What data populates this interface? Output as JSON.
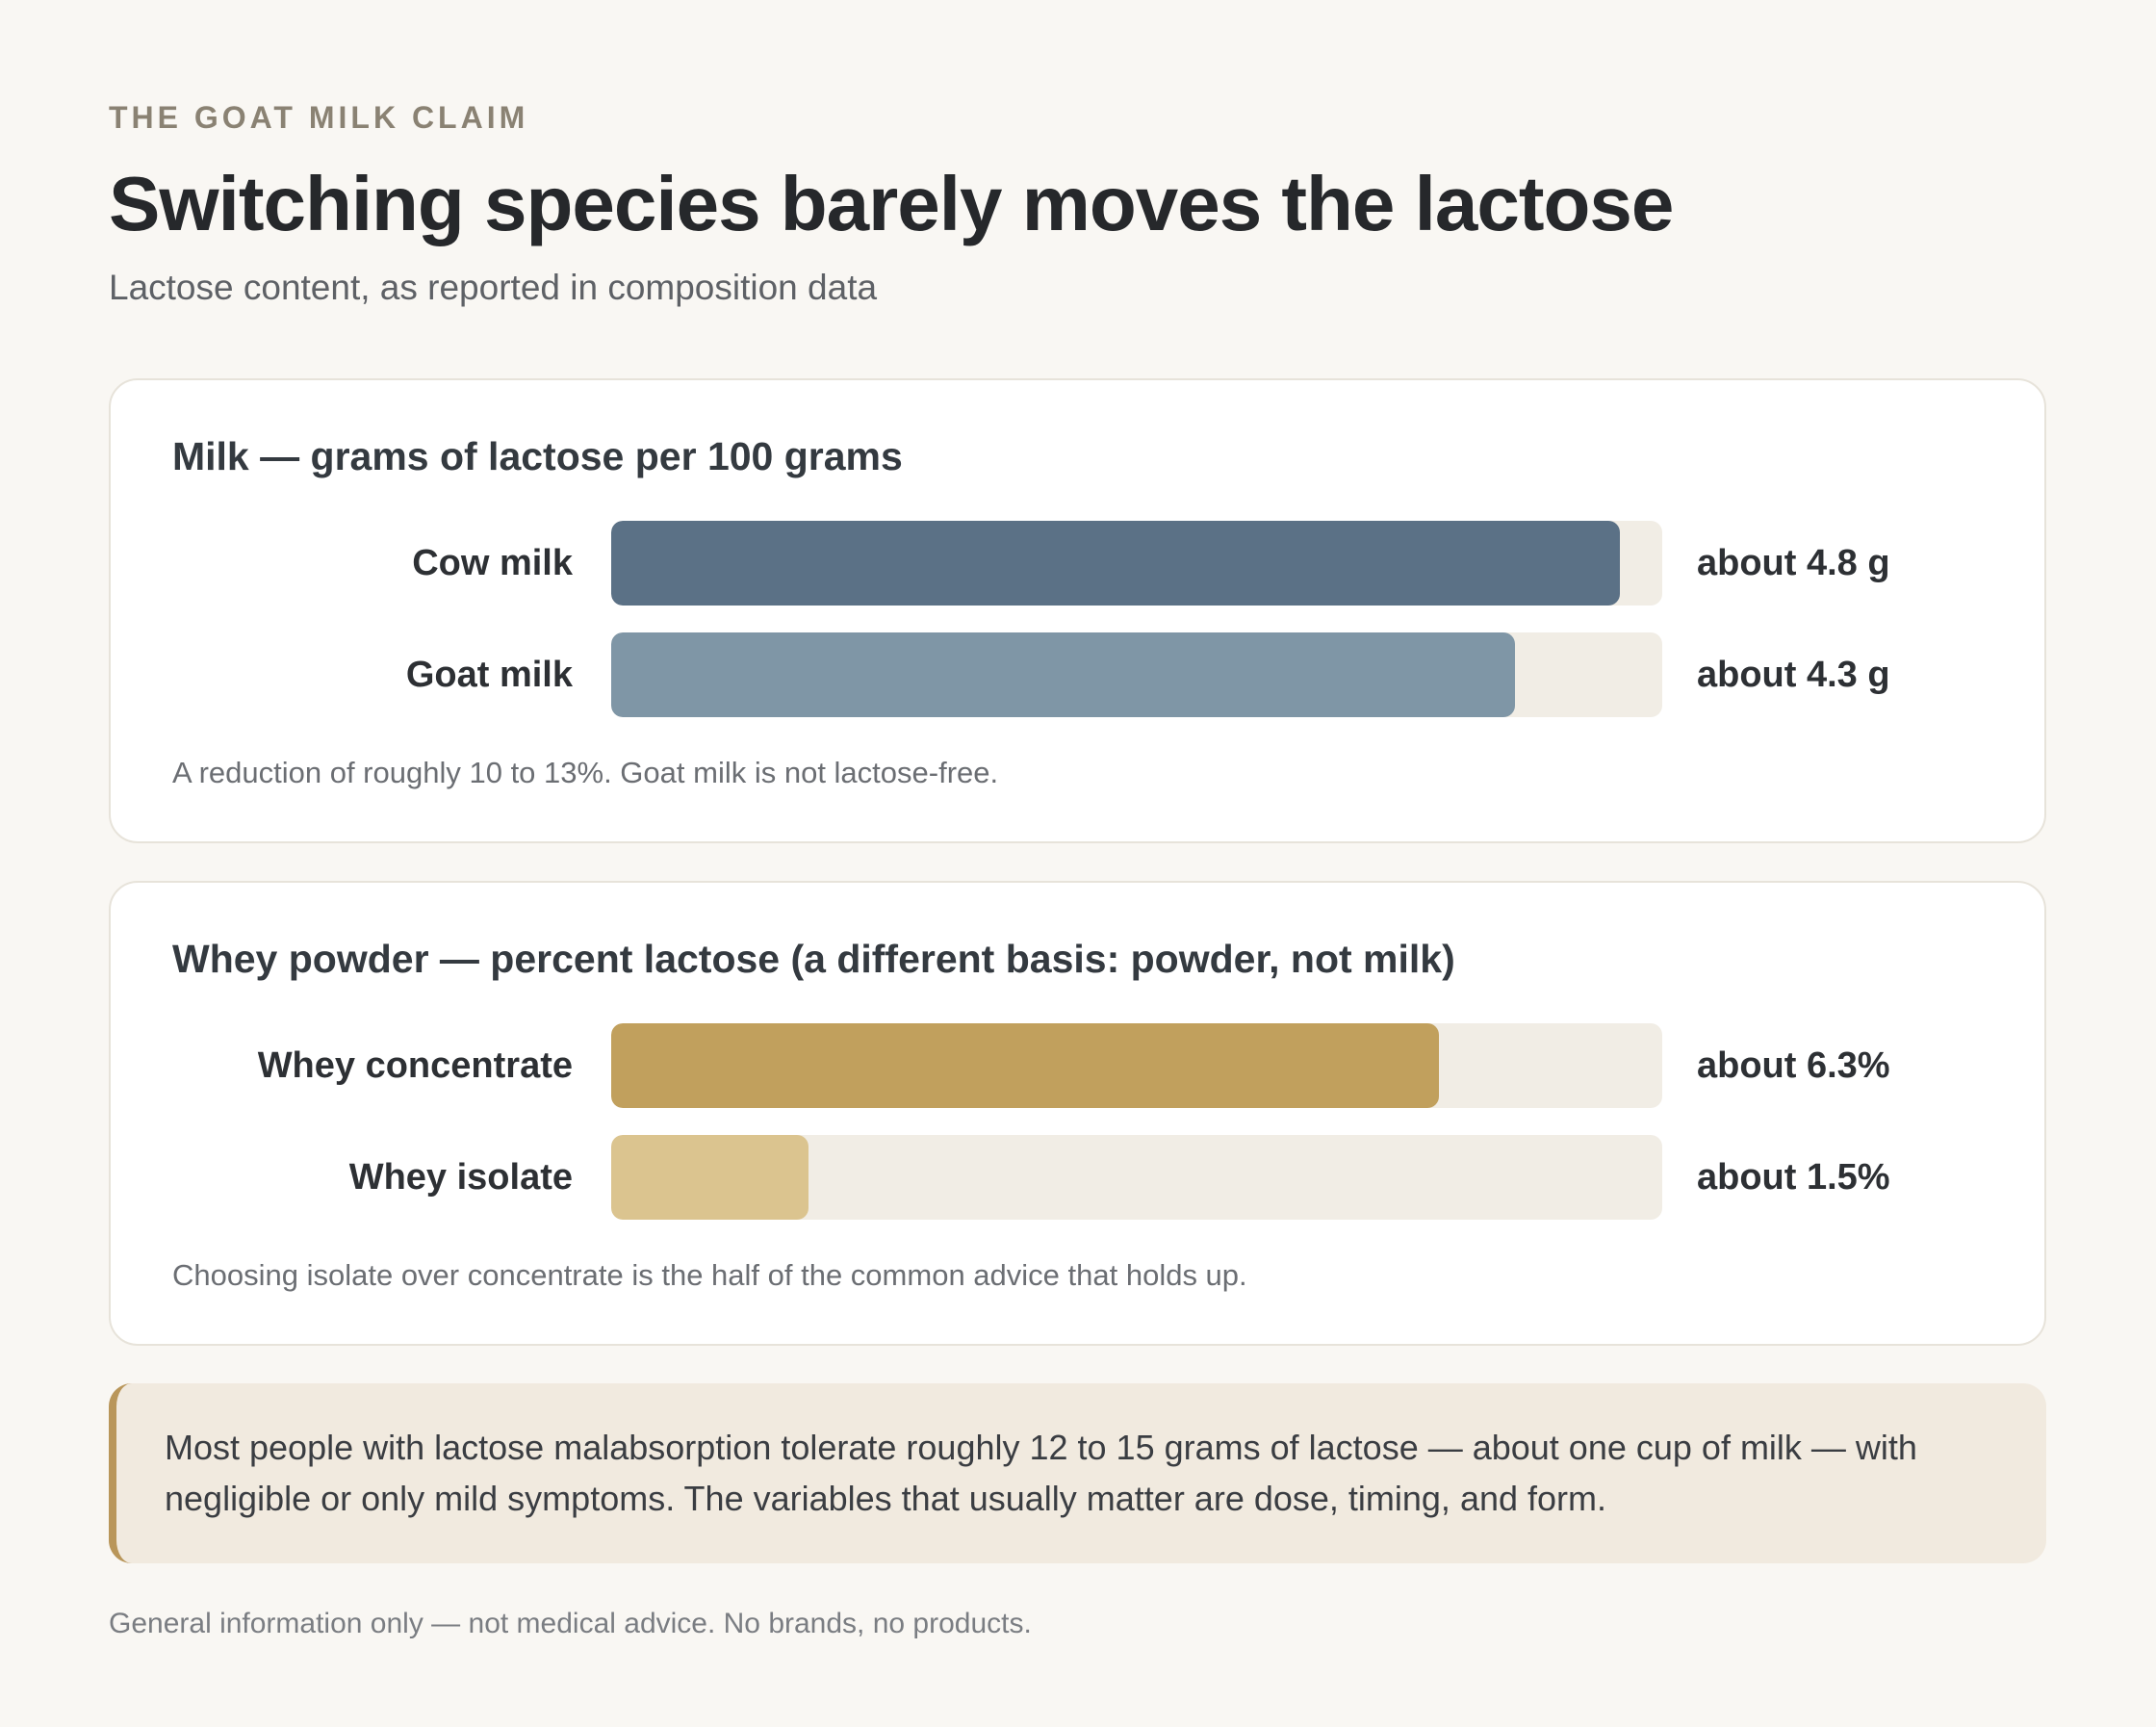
{
  "kicker": "THE GOAT MILK CLAIM",
  "title": "Switching species barely moves the lactose",
  "subtitle": "Lactose content, as reported in composition data",
  "colors": {
    "cow": "#5b7186",
    "goat": "#7f96a6",
    "concentrate": "#c1a05d",
    "isolate": "#dbc48f",
    "track": "#f1ede5",
    "callout_accent": "#b9965a"
  },
  "chart_data": [
    {
      "type": "bar",
      "title": "Milk — grams of lactose per 100 grams",
      "categories": [
        "Cow milk",
        "Goat milk"
      ],
      "values": [
        4.8,
        4.3
      ],
      "value_labels": [
        "about 4.8 g",
        "about 4.3 g"
      ],
      "unit": "g per 100 g",
      "xlim": [
        0,
        5
      ],
      "note": "A reduction of roughly 10 to 13%. Goat milk is not lactose-free."
    },
    {
      "type": "bar",
      "title": "Whey powder — percent lactose (a different basis: powder, not milk)",
      "categories": [
        "Whey concentrate",
        "Whey isolate"
      ],
      "values": [
        6.3,
        1.5
      ],
      "value_labels": [
        "about 6.3%",
        "about 1.5%"
      ],
      "unit": "%",
      "xlim": [
        0,
        8
      ],
      "note": "Choosing isolate over concentrate is the half of the common advice that holds up."
    }
  ],
  "callout": "Most people with lactose malabsorption tolerate roughly 12 to 15 grams of lactose — about one cup of milk — with negligible or only mild symptoms. The variables that usually matter are dose, timing, and form.",
  "footer": "General information only — not medical advice. No brands, no products."
}
